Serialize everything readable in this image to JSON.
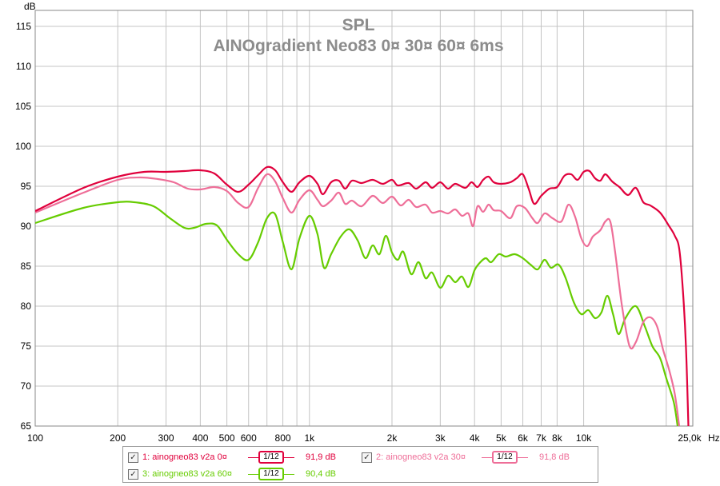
{
  "chart_data": {
    "type": "line",
    "title": "SPL",
    "subtitle": "AINOgradient Neo83 0¤ 30¤ 60¤ 6ms",
    "y_unit_label": "dB",
    "x_unit_label": "Hz",
    "x_scale": "log",
    "xlim": [
      100,
      25000
    ],
    "ylim": [
      65,
      117
    ],
    "grid": true,
    "y_ticks": [
      65,
      70,
      75,
      80,
      85,
      90,
      95,
      100,
      105,
      110,
      115
    ],
    "x_ticks": [
      {
        "value": 100,
        "label": "100"
      },
      {
        "value": 200,
        "label": "200"
      },
      {
        "value": 300,
        "label": "300"
      },
      {
        "value": 400,
        "label": "400"
      },
      {
        "value": 500,
        "label": "500"
      },
      {
        "value": 600,
        "label": "600"
      },
      {
        "value": 800,
        "label": "800"
      },
      {
        "value": 1000,
        "label": "1k"
      },
      {
        "value": 2000,
        "label": "2k"
      },
      {
        "value": 3000,
        "label": "3k"
      },
      {
        "value": 4000,
        "label": "4k"
      },
      {
        "value": 5000,
        "label": "5k"
      },
      {
        "value": 6000,
        "label": "6k"
      },
      {
        "value": 7000,
        "label": "7k"
      },
      {
        "value": 8000,
        "label": "8k"
      },
      {
        "value": 10000,
        "label": "10k"
      },
      {
        "value": 25000,
        "label": "25,0k"
      }
    ],
    "x_minor_gridlines": [
      700,
      900,
      20000
    ],
    "series": [
      {
        "name": "1: ainogneo83 v2a 0¤",
        "color": "#e0003c",
        "smoothing": "1/12",
        "level": "91,9 dB",
        "points": [
          [
            100,
            91.9
          ],
          [
            150,
            94.8
          ],
          [
            200,
            96.2
          ],
          [
            250,
            96.8
          ],
          [
            300,
            96.8
          ],
          [
            350,
            96.9
          ],
          [
            400,
            97.0
          ],
          [
            450,
            96.6
          ],
          [
            500,
            95.2
          ],
          [
            550,
            94.3
          ],
          [
            600,
            95.2
          ],
          [
            650,
            96.4
          ],
          [
            700,
            97.4
          ],
          [
            750,
            97.0
          ],
          [
            800,
            95.5
          ],
          [
            860,
            94.3
          ],
          [
            920,
            95.5
          ],
          [
            1000,
            96.3
          ],
          [
            1070,
            95.3
          ],
          [
            1120,
            94.0
          ],
          [
            1200,
            95.5
          ],
          [
            1280,
            95.7
          ],
          [
            1350,
            94.7
          ],
          [
            1430,
            95.7
          ],
          [
            1550,
            95.4
          ],
          [
            1700,
            95.8
          ],
          [
            1850,
            95.3
          ],
          [
            2000,
            95.8
          ],
          [
            2100,
            95.1
          ],
          [
            2300,
            95.4
          ],
          [
            2450,
            94.7
          ],
          [
            2650,
            95.5
          ],
          [
            2800,
            94.8
          ],
          [
            3000,
            95.5
          ],
          [
            3200,
            94.7
          ],
          [
            3400,
            95.3
          ],
          [
            3700,
            94.8
          ],
          [
            3900,
            95.5
          ],
          [
            4100,
            94.9
          ],
          [
            4300,
            95.8
          ],
          [
            4500,
            96.2
          ],
          [
            4700,
            95.5
          ],
          [
            5000,
            95.3
          ],
          [
            5400,
            95.5
          ],
          [
            5700,
            96.0
          ],
          [
            6000,
            96.5
          ],
          [
            6300,
            94.7
          ],
          [
            6600,
            92.8
          ],
          [
            7000,
            93.8
          ],
          [
            7500,
            94.7
          ],
          [
            8000,
            94.9
          ],
          [
            8500,
            96.3
          ],
          [
            9000,
            96.5
          ],
          [
            9500,
            95.8
          ],
          [
            10000,
            96.8
          ],
          [
            10500,
            96.9
          ],
          [
            11000,
            96.0
          ],
          [
            11500,
            95.7
          ],
          [
            12000,
            96.5
          ],
          [
            12700,
            95.6
          ],
          [
            13500,
            94.9
          ],
          [
            14500,
            93.9
          ],
          [
            15500,
            94.8
          ],
          [
            16500,
            93.0
          ],
          [
            17500,
            92.6
          ],
          [
            19000,
            91.7
          ],
          [
            20500,
            90.0
          ],
          [
            21500,
            88.8
          ],
          [
            22300,
            87.2
          ],
          [
            23000,
            82.0
          ],
          [
            23600,
            75.0
          ],
          [
            24100,
            65.0
          ]
        ]
      },
      {
        "name": "2: ainogneo83 v2a 30¤",
        "color": "#ee6e98",
        "smoothing": "1/12",
        "level": "91,8 dB",
        "points": [
          [
            100,
            91.7
          ],
          [
            150,
            94.2
          ],
          [
            200,
            95.8
          ],
          [
            240,
            96.1
          ],
          [
            280,
            95.9
          ],
          [
            320,
            95.5
          ],
          [
            360,
            94.7
          ],
          [
            400,
            94.6
          ],
          [
            450,
            94.9
          ],
          [
            500,
            94.4
          ],
          [
            550,
            92.9
          ],
          [
            600,
            92.4
          ],
          [
            650,
            94.8
          ],
          [
            700,
            96.5
          ],
          [
            750,
            95.6
          ],
          [
            800,
            93.5
          ],
          [
            860,
            91.7
          ],
          [
            920,
            93.3
          ],
          [
            1000,
            94.5
          ],
          [
            1070,
            93.3
          ],
          [
            1120,
            92.5
          ],
          [
            1200,
            93.2
          ],
          [
            1280,
            94.2
          ],
          [
            1350,
            92.8
          ],
          [
            1430,
            93.2
          ],
          [
            1550,
            92.5
          ],
          [
            1700,
            93.8
          ],
          [
            1850,
            92.9
          ],
          [
            2000,
            93.7
          ],
          [
            2150,
            92.6
          ],
          [
            2300,
            93.3
          ],
          [
            2450,
            92.4
          ],
          [
            2650,
            92.7
          ],
          [
            2800,
            91.7
          ],
          [
            3000,
            91.9
          ],
          [
            3200,
            91.6
          ],
          [
            3400,
            92.1
          ],
          [
            3600,
            91.3
          ],
          [
            3800,
            91.6
          ],
          [
            3950,
            90.0
          ],
          [
            4100,
            92.5
          ],
          [
            4300,
            91.8
          ],
          [
            4500,
            92.7
          ],
          [
            4700,
            92.0
          ],
          [
            5000,
            91.9
          ],
          [
            5400,
            91.0
          ],
          [
            5700,
            92.5
          ],
          [
            6100,
            92.3
          ],
          [
            6500,
            91.0
          ],
          [
            6800,
            90.4
          ],
          [
            7200,
            91.6
          ],
          [
            7700,
            91.0
          ],
          [
            8300,
            90.6
          ],
          [
            8800,
            92.7
          ],
          [
            9300,
            91.2
          ],
          [
            9800,
            88.5
          ],
          [
            10300,
            87.5
          ],
          [
            10800,
            88.7
          ],
          [
            11500,
            89.5
          ],
          [
            12000,
            90.6
          ],
          [
            12500,
            90.6
          ],
          [
            13000,
            87.0
          ],
          [
            13800,
            80.0
          ],
          [
            14700,
            75.0
          ],
          [
            15500,
            75.5
          ],
          [
            16500,
            78.0
          ],
          [
            17500,
            78.6
          ],
          [
            18500,
            77.5
          ],
          [
            19500,
            74.5
          ],
          [
            20500,
            72.0
          ],
          [
            21500,
            69.0
          ],
          [
            22300,
            65.0
          ]
        ]
      },
      {
        "name": "3: ainogneo83 v2a 60¤",
        "color": "#66cc00",
        "smoothing": "1/12",
        "level": "90,4 dB",
        "points": [
          [
            100,
            90.4
          ],
          [
            150,
            92.3
          ],
          [
            200,
            93.0
          ],
          [
            230,
            93.0
          ],
          [
            270,
            92.5
          ],
          [
            310,
            91.0
          ],
          [
            350,
            89.8
          ],
          [
            380,
            89.8
          ],
          [
            420,
            90.3
          ],
          [
            460,
            90.1
          ],
          [
            500,
            88.3
          ],
          [
            550,
            86.5
          ],
          [
            600,
            85.8
          ],
          [
            650,
            88.0
          ],
          [
            700,
            91.0
          ],
          [
            750,
            91.5
          ],
          [
            800,
            88.0
          ],
          [
            860,
            84.6
          ],
          [
            920,
            88.5
          ],
          [
            1000,
            91.3
          ],
          [
            1070,
            89.0
          ],
          [
            1130,
            84.8
          ],
          [
            1200,
            86.5
          ],
          [
            1300,
            88.7
          ],
          [
            1400,
            89.6
          ],
          [
            1500,
            88.2
          ],
          [
            1600,
            86.0
          ],
          [
            1700,
            87.6
          ],
          [
            1800,
            86.5
          ],
          [
            1900,
            88.8
          ],
          [
            2000,
            86.7
          ],
          [
            2100,
            85.8
          ],
          [
            2200,
            86.8
          ],
          [
            2350,
            84.0
          ],
          [
            2500,
            85.5
          ],
          [
            2650,
            83.5
          ],
          [
            2800,
            84.2
          ],
          [
            3000,
            82.3
          ],
          [
            3200,
            83.8
          ],
          [
            3400,
            83.0
          ],
          [
            3600,
            83.7
          ],
          [
            3800,
            82.4
          ],
          [
            4000,
            84.5
          ],
          [
            4200,
            85.5
          ],
          [
            4400,
            86.0
          ],
          [
            4600,
            85.5
          ],
          [
            4900,
            86.5
          ],
          [
            5200,
            86.2
          ],
          [
            5600,
            86.5
          ],
          [
            6000,
            86.0
          ],
          [
            6400,
            85.2
          ],
          [
            6800,
            84.6
          ],
          [
            7200,
            85.8
          ],
          [
            7600,
            84.8
          ],
          [
            8100,
            85.2
          ],
          [
            8600,
            83.5
          ],
          [
            9200,
            80.5
          ],
          [
            9800,
            79.0
          ],
          [
            10400,
            79.5
          ],
          [
            11000,
            78.5
          ],
          [
            11600,
            79.2
          ],
          [
            12200,
            81.3
          ],
          [
            12800,
            79.0
          ],
          [
            13400,
            76.5
          ],
          [
            14200,
            78.5
          ],
          [
            15500,
            80.0
          ],
          [
            16700,
            77.5
          ],
          [
            17800,
            75.0
          ],
          [
            19000,
            73.5
          ],
          [
            20000,
            71.0
          ],
          [
            21300,
            68.0
          ],
          [
            22000,
            65.0
          ]
        ]
      }
    ]
  }
}
